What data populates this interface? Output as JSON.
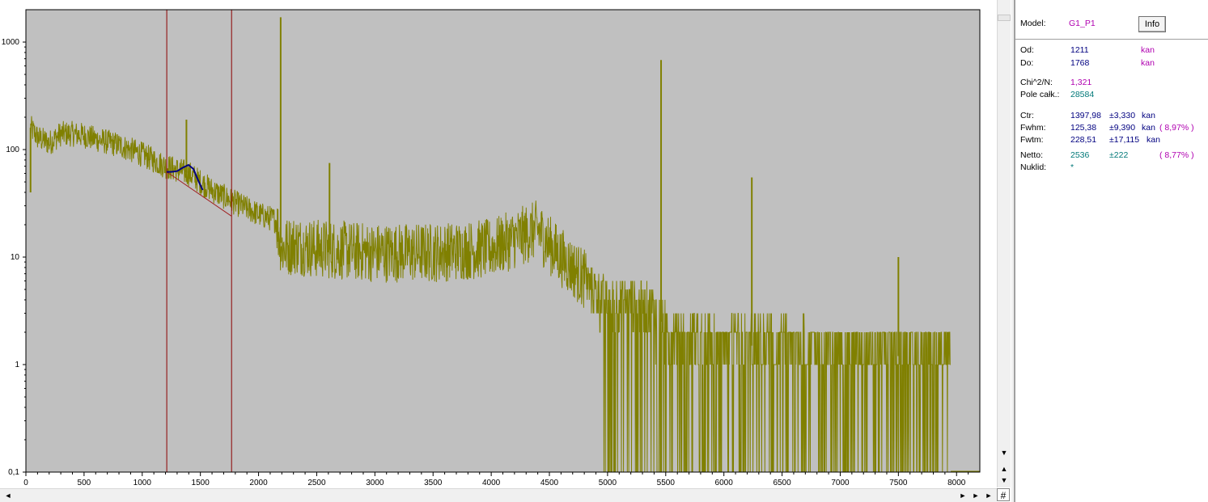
{
  "chart_data": {
    "type": "line",
    "yscale": "log",
    "xlim": [
      0,
      8200
    ],
    "ylim": [
      0.1,
      2000
    ],
    "grid": false,
    "xticks": [
      0,
      500,
      1000,
      1500,
      2000,
      2500,
      3000,
      3500,
      4000,
      4500,
      5000,
      5500,
      6000,
      6500,
      7000,
      7500,
      8000
    ],
    "xtick_labels": [
      "0",
      "500",
      "1000",
      "1500",
      "2000",
      "2500",
      "3000",
      "3500",
      "4000",
      "4500",
      "5000",
      "5500",
      "6000",
      "6500",
      "7000",
      "7500",
      "8000"
    ],
    "yticks": [
      0.1,
      1,
      10,
      100,
      1000
    ],
    "ytick_labels": [
      "0,1",
      "1",
      "10",
      "100",
      "1000"
    ],
    "spectrum_envelope": {
      "x": [
        40,
        60,
        100,
        200,
        300,
        400,
        500,
        600,
        800,
        1000,
        1200,
        1400,
        1600,
        1800,
        2000,
        2150,
        2200,
        2300,
        2500,
        3000,
        3500,
        4000,
        4400,
        4500,
        4600,
        4750,
        4900,
        5000,
        5200,
        5400,
        5500,
        6000,
        6500,
        7000,
        7500,
        7950
      ],
      "y": [
        160,
        150,
        130,
        115,
        140,
        140,
        135,
        125,
        110,
        90,
        70,
        60,
        42,
        32,
        25,
        22,
        12,
        13,
        12,
        11,
        11,
        12,
        18,
        13,
        10,
        7,
        5,
        4,
        4,
        3.5,
        2,
        1.5,
        1.5,
        1.2,
        1.2,
        1
      ]
    },
    "peaks": [
      {
        "x": 40,
        "y": 40
      },
      {
        "x": 1380,
        "y": 190
      },
      {
        "x": 2190,
        "y": 1700
      },
      {
        "x": 2610,
        "y": 75
      },
      {
        "x": 5460,
        "y": 680
      },
      {
        "x": 6240,
        "y": 55
      },
      {
        "x": 7500,
        "y": 10
      }
    ],
    "markers": [
      1211,
      1768
    ],
    "fit_curve": {
      "x": [
        1211,
        1250,
        1300,
        1350,
        1397,
        1440,
        1480,
        1520
      ],
      "y": [
        62,
        62,
        63,
        68,
        72,
        66,
        52,
        42
      ]
    },
    "baseline": {
      "x": [
        1211,
        1768
      ],
      "y": [
        62,
        24
      ]
    },
    "colors": {
      "background": "#c0c0c0",
      "spectrum": "#808000",
      "marker": "#8b0000",
      "fit": "#000080",
      "baseline": "#a02020"
    }
  },
  "panel": {
    "model_label": "Model:",
    "model_value": "G1_P1",
    "info_button": "Info",
    "od_label": "Od:",
    "od_value": "1211",
    "od_unit": "kan",
    "do_label": "Do:",
    "do_value": "1768",
    "do_unit": "kan",
    "chi_label": "Chi^2/N:",
    "chi_value": "1,321",
    "pole_label": "Pole całk.:",
    "pole_value": "28584",
    "ctr_label": "Ctr:",
    "ctr_value": "1397,98",
    "ctr_err": "±3,330",
    "ctr_unit": "kan",
    "fwhm_label": "Fwhm:",
    "fwhm_value": "125,38",
    "fwhm_err": "±9,390",
    "fwhm_unit": "kan",
    "fwhm_pct": "( 8,97% )",
    "fwtm_label": "Fwtm:",
    "fwtm_value": "228,51",
    "fwtm_err": "±17,115",
    "fwtm_unit": "kan",
    "netto_label": "Netto:",
    "netto_value": "2536",
    "netto_err": "±222",
    "netto_pct": "( 8,77% )",
    "nuklid_label": "Nuklid:",
    "nuklid_value": "*"
  },
  "scroll": {
    "up": "▲",
    "down": "▼",
    "down2": "▼",
    "left": "◄",
    "right": "►",
    "right2": "►",
    "right3": "►",
    "corner": "#"
  }
}
